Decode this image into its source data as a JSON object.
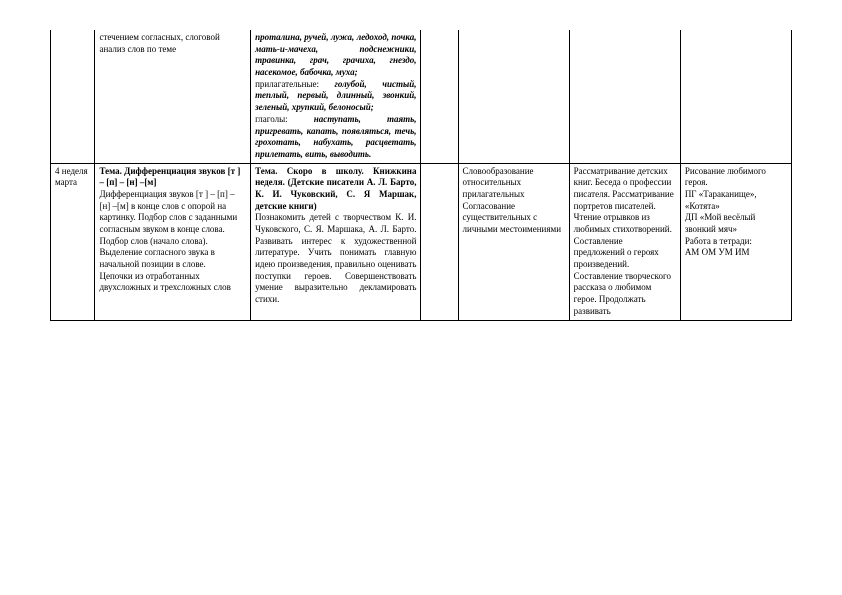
{
  "row1": {
    "c1": "",
    "c2": "стечением согласных, слоговой анализ слов по теме",
    "c3_part1": "проталина, ручей, лужа, ледоход, почка, мать-и-мачеха, подснежники, травинка, грач, грачиха, гнездо, насекомое, бабочка, муха;",
    "c3_part2_label": "прилагательные:",
    "c3_part2_text": "голубой, чистый, теплый, первый, длинный, звонкий, зеленый, хрупкий, белоносый;",
    "c3_part3_label": "глаголы:",
    "c3_part3_text": "наступать, таять, пригревать, капать, появляться, течь, грохотать, набухать, расцветать, прилетать, вить, выводить.",
    "c4": "",
    "c5": "",
    "c6": "",
    "c7": ""
  },
  "row2": {
    "c1": "4 неделя марта",
    "c2_title": "Тема. Дифференциация звуков [т ] – [п] – [н] –[м]",
    "c2_body": "Дифференциация звуков [т ] – [п] – [н] –[м] в конце слов с опорой на картинку. Подбор слов с заданными согласным звуком в конце слова. Подбор слов (начало слова). Выделение согласного звука в начальной позиции в слове.\nЦепочки из отработанных двухсложных и трехсложных слов",
    "c3_title": "Тема. Скоро в школу. Книжкина неделя. (Детские писатели А. Л. Барто, К. И. Чуковский, С. Я Маршак, детские книги)",
    "c3_body": "Познакомить детей с творчеством К. И. Чуковского, С. Я. Маршака, А. Л. Барто. Развивать интерес к художественной литературе. Учить понимать главную идею произведения, правильно оценивать поступки героев. Совершенствовать умение выразительно декламировать стихи.",
    "c4": "",
    "c5": "Словообразование относительных прилагательных Согласование существительных с личными местоимениями",
    "c6": "Рассматривание детских книг. Беседа о профессии писателя. Рассматривание портретов писателей.\nЧтение отрывков из любимых стихотворений. Составление предложений о героях произведений. Составление творческого рассказа о любимом герое. Продолжать развивать",
    "c7": "Рисование любимого героя.\nПГ «Тараканище», «Котята»\nДП «Мой весёлый звонкий мяч»\nРабота в тетради:\nАМ ОМ УМ ИМ"
  }
}
